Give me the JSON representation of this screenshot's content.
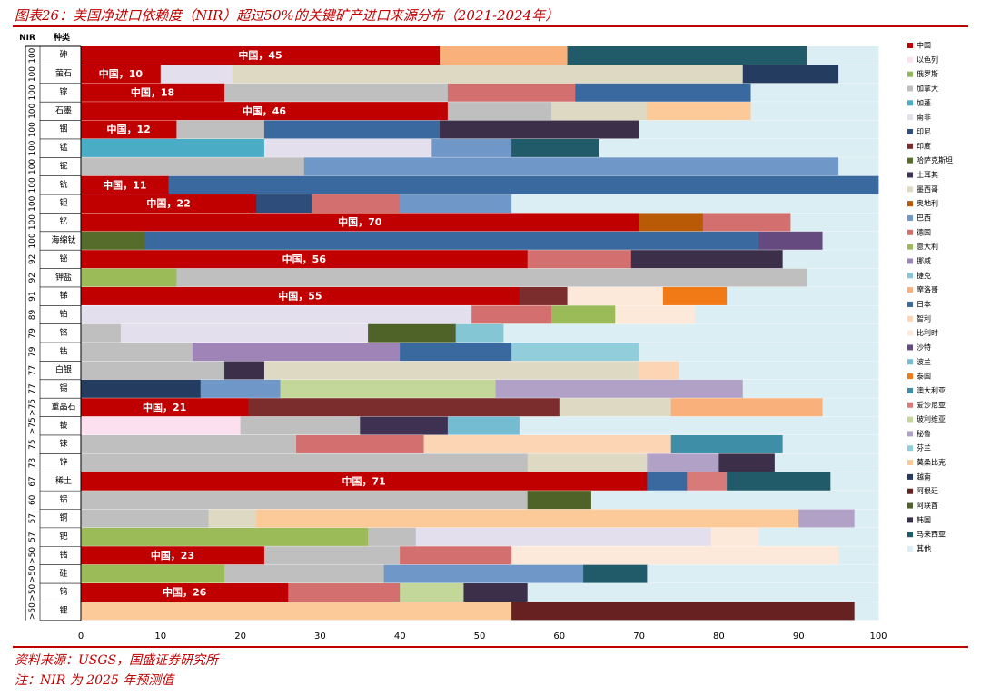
{
  "title": "图表26：美国净进口依赖度（NIR）超过50%的关键矿产进口来源分布（2021-2024年）",
  "footer": {
    "source": "资料来源：USGS，国盛证券研究所",
    "note": "注：NIR 为 2025 年预测值"
  },
  "colors": {
    "中国": "#c00000",
    "以色列": "#fde0f0",
    "俄罗斯": "#8fb95a",
    "加拿大": "#bfbfbf",
    "加蓬": "#4bacc6",
    "南非": "#e4dfec",
    "印尼": "#2e4d7b",
    "印度": "#7b2c2c",
    "哈萨克斯坦": "#566c2b",
    "土耳其": "#3f3151",
    "墨西哥": "#ddd9c3",
    "奥地利": "#b85a06",
    "巴西": "#6f98c8",
    "德国": "#d46f6f",
    "意大利": "#9bbb59",
    "挪威": "#9e84b7",
    "捷克": "#85c6d4",
    "摩洛哥": "#fab07a",
    "日本": "#3a69a0",
    "智利": "#fcd5b4",
    "比利时": "#fde9d9",
    "沙特": "#654a80",
    "波兰": "#73bcd2",
    "泰国": "#f27a16",
    "澳大利亚": "#3d8ea6",
    "爱沙尼亚": "#d97a7a",
    "玻利维亚": "#c4d79b",
    "秘鲁": "#b2a1c7",
    "芬兰": "#92cddc",
    "莫桑比克": "#fcc998",
    "越南": "#243c5f",
    "阿根廷": "#682121",
    "阿联酋": "#4f6228",
    "韩国": "#3b2f4a",
    "马来西亚": "#215a68",
    "其他": "#daeef3"
  },
  "chart_data": {
    "type": "stacked_bar_horizontal",
    "header_nir": "NIR",
    "header_mineral": "种类",
    "xlim": [
      0,
      100
    ],
    "xticks": [
      "0",
      "10",
      "20",
      "30",
      "40",
      "50",
      "60",
      "70",
      "80",
      "90",
      "100"
    ],
    "legend": [
      "中国",
      "以色列",
      "俄罗斯",
      "加拿大",
      "加蓬",
      "南非",
      "印尼",
      "印度",
      "哈萨克斯坦",
      "土耳其",
      "墨西哥",
      "奥地利",
      "巴西",
      "德国",
      "意大利",
      "挪威",
      "捷克",
      "摩洛哥",
      "日本",
      "智利",
      "比利时",
      "沙特",
      "波兰",
      "泰国",
      "澳大利亚",
      "爱沙尼亚",
      "玻利维亚",
      "秘鲁",
      "芬兰",
      "莫桑比克",
      "越南",
      "阿根廷",
      "阿联酋",
      "韩国",
      "马来西亚",
      "其他"
    ],
    "rows": [
      {
        "nir": "100",
        "mineral": "砷",
        "label": "中国，45",
        "segments": [
          [
            "中国",
            45
          ],
          [
            "摩洛哥",
            16
          ],
          [
            "马来西亚",
            30
          ],
          [
            "其他",
            9
          ]
        ]
      },
      {
        "nir": "100",
        "mineral": "萤石",
        "label": "中国，10",
        "segments": [
          [
            "中国",
            10
          ],
          [
            "南非",
            9
          ],
          [
            "墨西哥",
            64
          ],
          [
            "越南",
            12
          ],
          [
            "其他",
            5
          ]
        ]
      },
      {
        "nir": "100",
        "mineral": "镓",
        "label": "中国，18",
        "segments": [
          [
            "中国",
            18
          ],
          [
            "加拿大",
            28
          ],
          [
            "德国",
            16
          ],
          [
            "日本",
            22
          ],
          [
            "其他",
            16
          ]
        ]
      },
      {
        "nir": "100",
        "mineral": "石墨",
        "label": "中国，46",
        "segments": [
          [
            "中国",
            46
          ],
          [
            "加拿大",
            13
          ],
          [
            "墨西哥",
            12
          ],
          [
            "莫桑比克",
            13
          ],
          [
            "其他",
            16
          ]
        ]
      },
      {
        "nir": "100",
        "mineral": "铟",
        "label": "中国，12",
        "segments": [
          [
            "中国",
            12
          ],
          [
            "加拿大",
            11
          ],
          [
            "日本",
            22
          ],
          [
            "韩国",
            25
          ],
          [
            "其他",
            30
          ]
        ]
      },
      {
        "nir": "100",
        "mineral": "锰",
        "label": "",
        "segments": [
          [
            "加蓬",
            23
          ],
          [
            "南非",
            21
          ],
          [
            "巴西",
            10
          ],
          [
            "马来西亚",
            11
          ],
          [
            "其他",
            35
          ]
        ]
      },
      {
        "nir": "100",
        "mineral": "铌",
        "label": "",
        "segments": [
          [
            "加拿大",
            28
          ],
          [
            "巴西",
            67
          ],
          [
            "其他",
            5
          ]
        ]
      },
      {
        "nir": "100",
        "mineral": "钪",
        "label": "中国，11",
        "segments": [
          [
            "中国",
            11
          ],
          [
            "日本",
            89
          ]
        ]
      },
      {
        "nir": "100",
        "mineral": "钽",
        "label": "中国，22",
        "segments": [
          [
            "中国",
            22
          ],
          [
            "印尼",
            7
          ],
          [
            "德国",
            11
          ],
          [
            "巴西",
            14
          ],
          [
            "其他",
            46
          ]
        ]
      },
      {
        "nir": "100",
        "mineral": "钇",
        "label": "中国，70",
        "segments": [
          [
            "中国",
            70
          ],
          [
            "奥地利",
            8
          ],
          [
            "德国",
            11
          ],
          [
            "其他",
            11
          ]
        ]
      },
      {
        "nir": "100",
        "mineral": "海绵钛",
        "label": "",
        "segments": [
          [
            "哈萨克斯坦",
            8
          ],
          [
            "日本",
            77
          ],
          [
            "沙特",
            8
          ],
          [
            "其他",
            7
          ]
        ]
      },
      {
        "nir": "92",
        "mineral": "铋",
        "label": "中国，56",
        "segments": [
          [
            "中国",
            56
          ],
          [
            "德国",
            13
          ],
          [
            "韩国",
            19
          ],
          [
            "其他",
            12
          ]
        ]
      },
      {
        "nir": "92",
        "mineral": "钾盐",
        "label": "",
        "segments": [
          [
            "意大利",
            12
          ],
          [
            "加拿大",
            79
          ],
          [
            "其他",
            9
          ]
        ]
      },
      {
        "nir": "91",
        "mineral": "锑",
        "label": "中国，55",
        "segments": [
          [
            "中国",
            55
          ],
          [
            "印度",
            6
          ],
          [
            "比利时",
            12
          ],
          [
            "泰国",
            8
          ],
          [
            "其他",
            19
          ]
        ]
      },
      {
        "nir": "89",
        "mineral": "铂",
        "label": "",
        "segments": [
          [
            "南非",
            49
          ],
          [
            "德国",
            10
          ],
          [
            "意大利",
            8
          ],
          [
            "比利时",
            10
          ],
          [
            "其他",
            23
          ]
        ]
      },
      {
        "nir": "79",
        "mineral": "铬",
        "label": "",
        "segments": [
          [
            "加拿大",
            5
          ],
          [
            "南非",
            31
          ],
          [
            "阿联酋",
            11
          ],
          [
            "捷克",
            6
          ],
          [
            "其他",
            47
          ]
        ]
      },
      {
        "nir": "79",
        "mineral": "钴",
        "label": "",
        "segments": [
          [
            "加拿大",
            14
          ],
          [
            "挪威",
            26
          ],
          [
            "日本",
            14
          ],
          [
            "芬兰",
            16
          ],
          [
            "其他",
            30
          ]
        ]
      },
      {
        "nir": "77",
        "mineral": "白银",
        "label": "",
        "segments": [
          [
            "加拿大",
            18
          ],
          [
            "韩国",
            5
          ],
          [
            "墨西哥",
            47
          ],
          [
            "智利",
            5
          ],
          [
            "其他",
            25
          ]
        ]
      },
      {
        "nir": "77",
        "mineral": "锡",
        "label": "",
        "segments": [
          [
            "越南",
            15
          ],
          [
            "巴西",
            10
          ],
          [
            "玻利维亚",
            27
          ],
          [
            "秘鲁",
            31
          ],
          [
            "其他",
            17
          ]
        ]
      },
      {
        "nir": ">75",
        "mineral": "重晶石",
        "label": "中国，21",
        "segments": [
          [
            "中国",
            21
          ],
          [
            "印度",
            39
          ],
          [
            "墨西哥",
            14
          ],
          [
            "摩洛哥",
            19
          ],
          [
            "其他",
            7
          ]
        ]
      },
      {
        "nir": ">75",
        "mineral": "铍",
        "label": "",
        "segments": [
          [
            "以色列",
            20
          ],
          [
            "加拿大",
            15
          ],
          [
            "土耳其",
            11
          ],
          [
            "波兰",
            9
          ],
          [
            "其他",
            45
          ]
        ]
      },
      {
        "nir": "75",
        "mineral": "铼",
        "label": "",
        "segments": [
          [
            "加拿大",
            27
          ],
          [
            "德国",
            16
          ],
          [
            "智利",
            31
          ],
          [
            "澳大利亚",
            14
          ],
          [
            "其他",
            12
          ]
        ]
      },
      {
        "nir": "73",
        "mineral": "锌",
        "label": "",
        "segments": [
          [
            "加拿大",
            56
          ],
          [
            "墨西哥",
            15
          ],
          [
            "秘鲁",
            9
          ],
          [
            "韩国",
            7
          ],
          [
            "其他",
            13
          ]
        ]
      },
      {
        "nir": "67",
        "mineral": "稀土",
        "label": "中国，71",
        "segments": [
          [
            "中国",
            71
          ],
          [
            "日本",
            5
          ],
          [
            "爱沙尼亚",
            5
          ],
          [
            "马来西亚",
            13
          ],
          [
            "其他",
            6
          ]
        ]
      },
      {
        "nir": "60",
        "mineral": "铝",
        "label": "",
        "segments": [
          [
            "加拿大",
            56
          ],
          [
            "阿联酋",
            8
          ],
          [
            "其他",
            36
          ]
        ]
      },
      {
        "nir": "57",
        "mineral": "铜",
        "label": "",
        "segments": [
          [
            "加拿大",
            16
          ],
          [
            "墨西哥",
            6
          ],
          [
            "莫桑比克",
            68
          ],
          [
            "秘鲁",
            7
          ],
          [
            "其他",
            3
          ]
        ]
      },
      {
        "nir": "57",
        "mineral": "钯",
        "label": "",
        "segments": [
          [
            "意大利",
            36
          ],
          [
            "加拿大",
            6
          ],
          [
            "南非",
            37
          ],
          [
            "比利时",
            6
          ],
          [
            "其他",
            15
          ]
        ]
      },
      {
        "nir": ">50",
        "mineral": "锗",
        "label": "中国，23",
        "segments": [
          [
            "中国",
            23
          ],
          [
            "加拿大",
            17
          ],
          [
            "德国",
            14
          ],
          [
            "比利时",
            41
          ],
          [
            "其他",
            5
          ]
        ]
      },
      {
        "nir": ">50",
        "mineral": "硅",
        "label": "",
        "segments": [
          [
            "意大利",
            18
          ],
          [
            "加拿大",
            20
          ],
          [
            "巴西",
            25
          ],
          [
            "马来西亚",
            8
          ],
          [
            "其他",
            29
          ]
        ]
      },
      {
        "nir": ">50",
        "mineral": "钨",
        "label": "中国，26",
        "segments": [
          [
            "中国",
            26
          ],
          [
            "德国",
            14
          ],
          [
            "玻利维亚",
            8
          ],
          [
            "韩国",
            8
          ],
          [
            "其他",
            44
          ]
        ]
      },
      {
        "nir": ">50",
        "mineral": "锂",
        "label": "",
        "segments": [
          [
            "莫桑比克",
            54
          ],
          [
            "阿根廷",
            43
          ],
          [
            "其他",
            3
          ]
        ]
      }
    ]
  }
}
